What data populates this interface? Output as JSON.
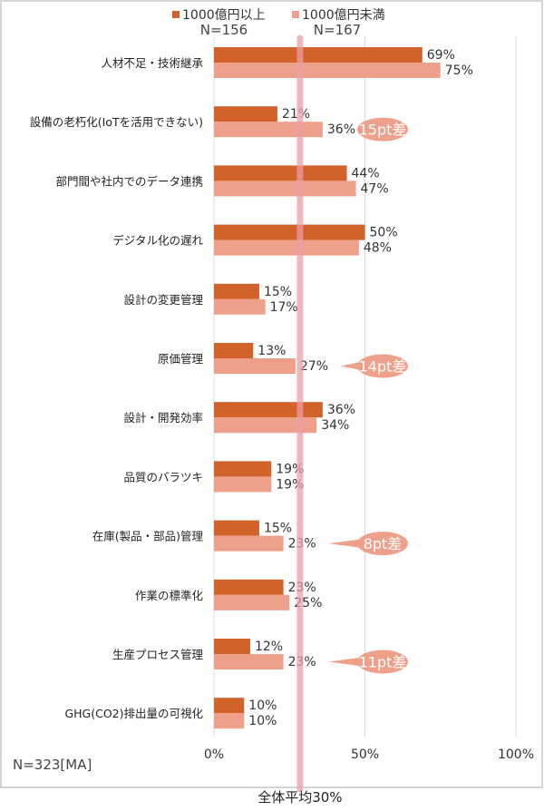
{
  "chart_data": {
    "type": "bar",
    "orientation": "horizontal",
    "categories": [
      "人材不足・技術継承",
      "設備の老朽化(IoTを活用できない)",
      "部門間や社内でのデータ連携",
      "デジタル化の遅れ",
      "設計の変更管理",
      "原価管理",
      "設計・開発効率",
      "品質のバラツキ",
      "在庫(製品・部品)管理",
      "作業の標準化",
      "生産プロセス管理",
      "GHG(CO2)排出量の可視化"
    ],
    "series": [
      {
        "name": "1000億円以上",
        "n_label": "N=156",
        "color": "#D0622A",
        "values": [
          69,
          21,
          44,
          50,
          15,
          13,
          36,
          19,
          15,
          23,
          12,
          10
        ]
      },
      {
        "name": "1000億円未満",
        "n_label": "N=167",
        "color": "#EFA08A",
        "values": [
          75,
          36,
          47,
          48,
          17,
          27,
          34,
          19,
          23,
          25,
          23,
          10
        ]
      }
    ],
    "xlim": [
      0,
      100
    ],
    "xticks": [
      "0%",
      "50%",
      "100%"
    ],
    "grid": true,
    "legend": "top",
    "sample_note": "N=323[MA]",
    "average": {
      "value": 30,
      "label": "全体平均30%",
      "color": "#E8A0A6"
    },
    "annotations": [
      {
        "category_index": 1,
        "text": "15pt差"
      },
      {
        "category_index": 5,
        "text": "14pt差"
      },
      {
        "category_index": 8,
        "text": "8pt差"
      },
      {
        "category_index": 10,
        "text": "11pt差"
      }
    ]
  }
}
